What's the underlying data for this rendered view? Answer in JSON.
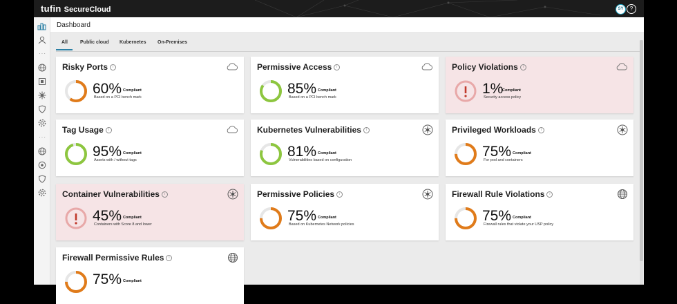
{
  "app": {
    "logo_text": "tufin",
    "product_name": "SecureCloud"
  },
  "topbar": {
    "user_initials": "SY",
    "help_label": "?"
  },
  "sidebar": {
    "icons": [
      "dashboard-icon",
      "user-icon",
      "globe-icon",
      "inventory-icon",
      "kubernetes-icon",
      "shield-icon",
      "settings-icon",
      "globe-icon",
      "kubernetes-icon",
      "shield-icon",
      "settings-icon"
    ]
  },
  "header": {
    "title": "Dashboard"
  },
  "tabs": [
    {
      "label": "All",
      "active": true
    },
    {
      "label": "Public cloud",
      "active": false
    },
    {
      "label": "Kubernetes",
      "active": false
    },
    {
      "label": "On-Premises",
      "active": false
    }
  ],
  "colors": {
    "green": "#8dc63f",
    "orange": "#e07b1a",
    "red": "#c0392b",
    "alert_bg": "#f6e4e6",
    "accent": "#2a7fa4"
  },
  "cards": [
    {
      "title": "Risky Ports",
      "percent": "60%",
      "compliant_label": "Compliant",
      "description": "Based on a PCI bench mark",
      "icon": "cloud-icon",
      "status": "orange",
      "value": 0.6
    },
    {
      "title": "Permissive Access",
      "percent": "85%",
      "compliant_label": "Compliant",
      "description": "Based on a PCI bench mark",
      "icon": "cloud-icon",
      "status": "green",
      "value": 0.85
    },
    {
      "title": "Policy Violations",
      "percent": "1%",
      "compliant_label": "Compliant",
      "description": "Security access policy",
      "icon": "cloud-icon",
      "status": "red",
      "value": 0.01
    },
    {
      "title": "Tag Usage",
      "percent": "95%",
      "compliant_label": "Compliant",
      "description": "Assets with / without tags",
      "icon": "cloud-icon",
      "status": "green",
      "value": 0.95
    },
    {
      "title": "Kubernetes Vulnerabilities",
      "percent": "81%",
      "compliant_label": "Compliant",
      "description": "Vulnerabilities based on configuration",
      "icon": "kubernetes-icon",
      "status": "green",
      "value": 0.81
    },
    {
      "title": "Privileged Workloads",
      "percent": "75%",
      "compliant_label": "Compliant",
      "description": "For pod and containers",
      "icon": "kubernetes-icon",
      "status": "orange",
      "value": 0.75
    },
    {
      "title": "Container Vulnerabilities",
      "percent": "45%",
      "compliant_label": "Compliant",
      "description": "Containers with Score 8 and lower",
      "icon": "kubernetes-icon",
      "status": "red",
      "value": 0.45
    },
    {
      "title": "Permissive Policies",
      "percent": "75%",
      "compliant_label": "Compliant",
      "description": "Based on Kubernetes Network policies",
      "icon": "kubernetes-icon",
      "status": "orange",
      "value": 0.75
    },
    {
      "title": "Firewall Rule Violations",
      "percent": "75%",
      "compliant_label": "Compliant",
      "description": "Firewall rules that violate your USP policy",
      "icon": "globe-icon",
      "status": "orange",
      "value": 0.75
    },
    {
      "title": "Firewall Permissive Rules",
      "percent": "75%",
      "compliant_label": "Compliant",
      "description": "",
      "icon": "globe-icon",
      "status": "orange",
      "value": 0.75
    }
  ]
}
